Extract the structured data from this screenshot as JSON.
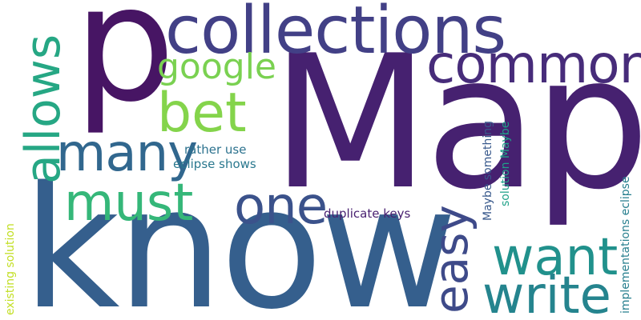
{
  "words": {
    "map": {
      "text": "Map",
      "color": "#462170"
    },
    "know": {
      "text": "know",
      "color": "#355f8d"
    },
    "p": {
      "text": "p",
      "color": "#471564"
    },
    "collections": {
      "text": "collections",
      "color": "#424086"
    },
    "commons": {
      "text": "commons",
      "color": "#472c7a"
    },
    "google": {
      "text": "google",
      "color": "#7ad151"
    },
    "bet": {
      "text": "bet",
      "color": "#84d44b"
    },
    "many": {
      "text": "many",
      "color": "#31678e"
    },
    "allows": {
      "text": "allows",
      "color": "#26a784"
    },
    "must": {
      "text": "must",
      "color": "#35b779"
    },
    "one": {
      "text": "one",
      "color": "#3b528b"
    },
    "easy": {
      "text": "easy",
      "color": "#3e4a89"
    },
    "want": {
      "text": "want",
      "color": "#21918c"
    },
    "write": {
      "text": "write",
      "color": "#25848e"
    },
    "rather_use": {
      "text": "rather use",
      "color": "#2c728e"
    },
    "eclipse_shows": {
      "text": "eclipse shows",
      "color": "#2a788e"
    },
    "duplicate_keys": {
      "text": "duplicate keys",
      "color": "#481f70"
    },
    "maybe_something": {
      "text": "Maybe something",
      "color": "#38598c"
    },
    "solution_maybe": {
      "text": "solution Maybe",
      "color": "#1fa188"
    },
    "implementations_eclipse": {
      "text": "implementations eclipse",
      "color": "#277f8e"
    },
    "existing_solution": {
      "text": "existing solution",
      "color": "#c2df23"
    }
  }
}
